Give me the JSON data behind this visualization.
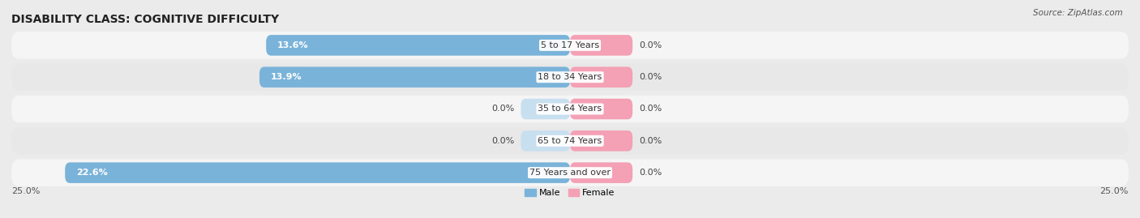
{
  "title": "DISABILITY CLASS: COGNITIVE DIFFICULTY",
  "source": "Source: ZipAtlas.com",
  "categories": [
    "5 to 17 Years",
    "18 to 34 Years",
    "35 to 64 Years",
    "65 to 74 Years",
    "75 Years and over"
  ],
  "male_values": [
    13.6,
    13.9,
    0.0,
    0.0,
    22.6
  ],
  "female_values": [
    0.0,
    0.0,
    0.0,
    0.0,
    0.0
  ],
  "male_color": "#7ab3d9",
  "female_color": "#f4a0b5",
  "male_label": "Male",
  "female_label": "Female",
  "xlim": 25.0,
  "axis_label_left": "25.0%",
  "axis_label_right": "25.0%",
  "bg_color": "#ebebeb",
  "row_colors": [
    "#f5f5f5",
    "#e8e8e8"
  ],
  "title_fontsize": 10,
  "label_fontsize": 8,
  "bar_height": 0.65,
  "female_stub": 2.8,
  "male_zero_stub": 2.2
}
